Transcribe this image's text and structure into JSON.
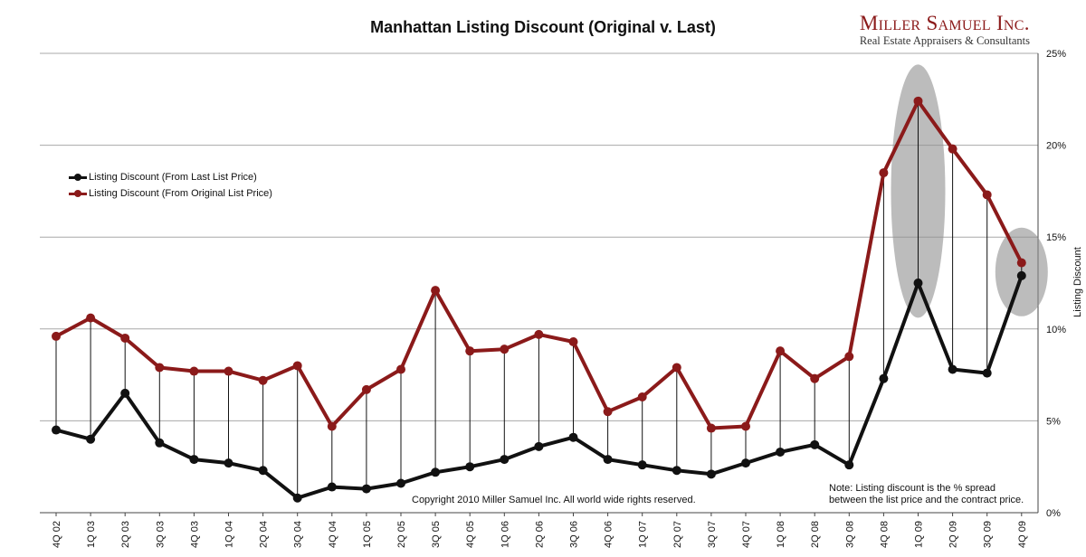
{
  "title": "Manhattan Listing Discount (Original v. Last)",
  "brand": {
    "name": "Miller Samuel Inc.",
    "tagline": "Real Estate Appraisers & Consultants"
  },
  "legend": [
    {
      "label": "Listing Discount (From Last List Price)",
      "color": "#111111"
    },
    {
      "label": "Listing Discount (From Original List Price)",
      "color": "#8b1a1a"
    }
  ],
  "copyright": "Copyright 2010 Miller Samuel Inc.  All world wide rights reserved.",
  "note": {
    "line1": "Note: Listing discount is the % spread",
    "line2": "between the list price and the contract price."
  },
  "chart_data": {
    "type": "line",
    "title": "Manhattan Listing Discount (Original v. Last)",
    "xlabel": "",
    "ylabel": "Listing Discount",
    "ylim": [
      0,
      25
    ],
    "y_ticks": [
      "0%",
      "5%",
      "10%",
      "15%",
      "20%",
      "25%"
    ],
    "y_axis_side": "right",
    "grid": true,
    "legend_position": "left",
    "categories": [
      "4Q 02",
      "1Q 03",
      "2Q 03",
      "3Q 03",
      "4Q 03",
      "1Q 04",
      "2Q 04",
      "3Q 04",
      "4Q 04",
      "1Q 05",
      "2Q 05",
      "3Q 05",
      "4Q 05",
      "1Q 06",
      "2Q 06",
      "3Q 06",
      "4Q 06",
      "1Q 07",
      "2Q 07",
      "3Q 07",
      "4Q 07",
      "1Q 08",
      "2Q 08",
      "3Q 08",
      "4Q 08",
      "1Q 09",
      "2Q 09",
      "3Q 09",
      "4Q 09"
    ],
    "series": [
      {
        "name": "Listing Discount (From Last List Price)",
        "color": "#111111",
        "values": [
          4.5,
          4.0,
          6.5,
          3.8,
          2.9,
          2.7,
          2.3,
          0.8,
          1.4,
          1.3,
          1.6,
          2.2,
          2.5,
          2.9,
          3.6,
          4.1,
          2.9,
          2.6,
          2.3,
          2.1,
          2.7,
          3.3,
          3.7,
          2.6,
          7.3,
          12.5,
          7.8,
          7.6,
          12.9
        ]
      },
      {
        "name": "Listing Discount (From Original List Price)",
        "color": "#8b1a1a",
        "values": [
          9.6,
          10.6,
          9.5,
          7.9,
          7.7,
          7.7,
          7.2,
          8.0,
          4.7,
          6.7,
          7.8,
          12.1,
          8.8,
          8.9,
          9.7,
          9.3,
          5.5,
          6.3,
          7.9,
          4.6,
          4.7,
          8.8,
          7.3,
          8.5,
          18.5,
          22.4,
          19.8,
          17.3,
          13.6
        ]
      }
    ],
    "highlights": [
      "1Q 09",
      "4Q 09"
    ]
  }
}
